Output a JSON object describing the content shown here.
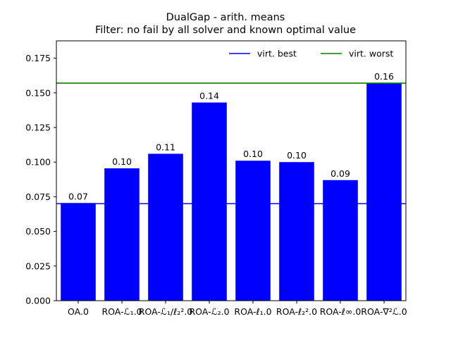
{
  "chart_data": {
    "type": "bar",
    "title": "DualGap - arith. means",
    "subtitle": "Filter: no fail by all solver and known optimal value",
    "xlabel": "",
    "ylabel": "",
    "categories": [
      "OA.0",
      "ROA-ℒ₁.0",
      "ROA-ℒ₁/ℓ₂².0",
      "ROA-ℒ₂.0",
      "ROA-ℓ₁.0",
      "ROA-ℓ₂².0",
      "ROA-ℓ∞.0",
      "ROA-∇²ℒ.0"
    ],
    "values": [
      0.0705,
      0.0955,
      0.106,
      0.143,
      0.101,
      0.1,
      0.087,
      0.157
    ],
    "data_labels": [
      "0.07",
      "0.10",
      "0.11",
      "0.14",
      "0.10",
      "0.10",
      "0.09",
      "0.16"
    ],
    "ylim": [
      0,
      0.1875
    ],
    "yticks": [
      0.0,
      0.025,
      0.05,
      0.075,
      0.1,
      0.125,
      0.15,
      0.175
    ],
    "ytick_labels": [
      "0.000",
      "0.025",
      "0.050",
      "0.075",
      "0.100",
      "0.125",
      "0.150",
      "0.175"
    ],
    "bar_color": "#0000ff",
    "reference_lines": [
      {
        "name": "virt. best",
        "value": 0.07,
        "color": "#0000ff"
      },
      {
        "name": "virt. worst",
        "value": 0.157,
        "color": "#008000"
      }
    ],
    "legend_position": "top-right",
    "grid": false
  }
}
